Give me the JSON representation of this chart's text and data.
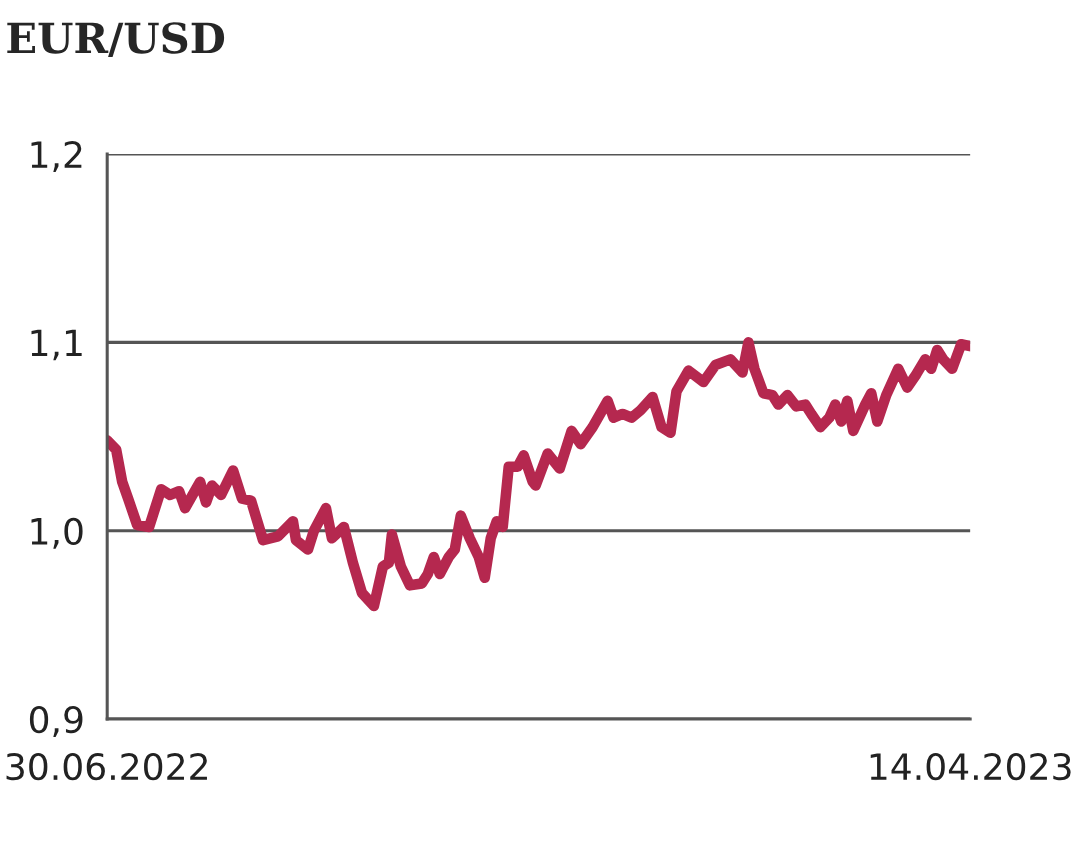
{
  "chart_data": {
    "type": "line",
    "title": "EUR/USD",
    "x": [
      "2022-06-30",
      "2022-07-03",
      "2022-07-05",
      "2022-07-07",
      "2022-07-10",
      "2022-07-14",
      "2022-07-18",
      "2022-07-21",
      "2022-07-24",
      "2022-07-26",
      "2022-07-31",
      "2022-08-02",
      "2022-08-04",
      "2022-08-07",
      "2022-08-11",
      "2022-08-14",
      "2022-08-17",
      "2022-08-21",
      "2022-08-26",
      "2022-08-31",
      "2022-09-01",
      "2022-09-05",
      "2022-09-07",
      "2022-09-11",
      "2022-09-13",
      "2022-09-17",
      "2022-09-20",
      "2022-09-23",
      "2022-09-27",
      "2022-09-30",
      "2022-10-02",
      "2022-10-03",
      "2022-10-06",
      "2022-10-09",
      "2022-10-13",
      "2022-10-15",
      "2022-10-17",
      "2022-10-19",
      "2022-10-22",
      "2022-10-24",
      "2022-10-26",
      "2022-10-29",
      "2022-11-01",
      "2022-11-03",
      "2022-11-05",
      "2022-11-07",
      "2022-11-09",
      "2022-11-11",
      "2022-11-14",
      "2022-11-16",
      "2022-11-19",
      "2022-11-20",
      "2022-11-24",
      "2022-11-28",
      "2022-12-02",
      "2022-12-05",
      "2022-12-09",
      "2022-12-14",
      "2022-12-16",
      "2022-12-19",
      "2022-12-22",
      "2022-12-25",
      "2022-12-29",
      "2023-01-01",
      "2023-01-04",
      "2023-01-06",
      "2023-01-10",
      "2023-01-15",
      "2023-01-19",
      "2023-01-24",
      "2023-01-28",
      "2023-01-30",
      "2023-02-01",
      "2023-02-04",
      "2023-02-07",
      "2023-02-09",
      "2023-02-12",
      "2023-02-15",
      "2023-02-18",
      "2023-02-20",
      "2023-02-23",
      "2023-02-26",
      "2023-02-28",
      "2023-03-02",
      "2023-03-04",
      "2023-03-06",
      "2023-03-10",
      "2023-03-12",
      "2023-03-14",
      "2023-03-17",
      "2023-03-21",
      "2023-03-24",
      "2023-03-27",
      "2023-03-30",
      "2023-04-01",
      "2023-04-03",
      "2023-04-05",
      "2023-04-08",
      "2023-04-11",
      "2023-04-14"
    ],
    "series": [
      {
        "color": "#b5284f",
        "values": [
          1.048,
          1.043,
          1.026,
          1.017,
          1.003,
          1.002,
          1.022,
          1.019,
          1.021,
          1.012,
          1.026,
          1.015,
          1.024,
          1.019,
          1.032,
          1.017,
          1.016,
          0.995,
          0.997,
          1.005,
          0.995,
          0.99,
          1.0,
          1.012,
          0.996,
          1.002,
          0.983,
          0.967,
          0.96,
          0.981,
          0.983,
          0.998,
          0.981,
          0.971,
          0.972,
          0.977,
          0.986,
          0.977,
          0.986,
          0.99,
          1.008,
          0.996,
          0.986,
          0.975,
          0.996,
          1.005,
          1.002,
          1.034,
          1.034,
          1.04,
          1.026,
          1.024,
          1.041,
          1.033,
          1.053,
          1.046,
          1.055,
          1.069,
          1.06,
          1.062,
          1.06,
          1.064,
          1.071,
          1.055,
          1.052,
          1.074,
          1.085,
          1.079,
          1.088,
          1.091,
          1.084,
          1.1,
          1.086,
          1.073,
          1.072,
          1.067,
          1.072,
          1.066,
          1.067,
          1.062,
          1.055,
          1.06,
          1.067,
          1.058,
          1.069,
          1.053,
          1.067,
          1.073,
          1.058,
          1.072,
          1.086,
          1.076,
          1.083,
          1.091,
          1.086,
          1.096,
          1.091,
          1.086,
          1.099,
          1.098
        ]
      }
    ],
    "xlim": [
      "2022-06-30",
      "2023-04-14"
    ],
    "xticks": [
      {
        "value": "2022-06-30",
        "label": "30.06.2022"
      },
      {
        "value": "2023-04-14",
        "label": "14.04.2023"
      }
    ],
    "ylim": [
      0.9,
      1.2
    ],
    "yticks": [
      {
        "value": 0.9,
        "label": "0,9"
      },
      {
        "value": 1.0,
        "label": "1,0"
      },
      {
        "value": 1.1,
        "label": "1,1"
      },
      {
        "value": 1.2,
        "label": "1,2"
      }
    ],
    "grid": "y",
    "marker": "none",
    "line_style": "solid",
    "legend": false
  }
}
